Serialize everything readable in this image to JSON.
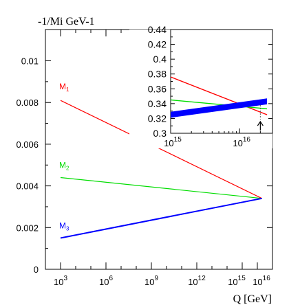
{
  "chart_data": [
    {
      "type": "line",
      "ylabel": "-1/Mi GeV-1",
      "xlabel": "Q [GeV]",
      "xscale": "log10",
      "xlim": [
        100,
        1e+17
      ],
      "ylim": [
        0,
        0.0115
      ],
      "x_tick_labels": [
        {
          "base": "10",
          "exp": "3",
          "value": 1000
        },
        {
          "base": "10",
          "exp": "6",
          "value": 1000000
        },
        {
          "base": "10",
          "exp": "9",
          "value": 1000000000
        },
        {
          "base": "10",
          "exp": "12",
          "value": 1000000000000
        },
        {
          "base": "10",
          "exp": "15",
          "value": 1000000000000000.0
        },
        {
          "base": "10",
          "exp": "16",
          "value": 1e+16
        }
      ],
      "y_ticks": [
        0,
        0.002,
        0.004,
        0.006,
        0.008,
        0.01
      ],
      "y_tick_labels": [
        "0",
        "0.002",
        "0.004",
        "0.006",
        "0.008",
        "0.01"
      ],
      "series": [
        {
          "name": "M1",
          "label_base": "M",
          "label_sub": "1",
          "color": "#ff0000",
          "x": [
            1000,
            2e+16
          ],
          "y": [
            0.0081,
            0.0034
          ]
        },
        {
          "name": "M2",
          "label_base": "M",
          "label_sub": "2",
          "color": "#00dd00",
          "x": [
            1000,
            2e+16
          ],
          "y": [
            0.0044,
            0.0034
          ]
        },
        {
          "name": "M3",
          "label_base": "M",
          "label_sub": "3",
          "color": "#0000ff",
          "x": [
            1000,
            2e+16
          ],
          "y": [
            0.0015,
            0.0034
          ]
        }
      ],
      "grid": false
    },
    {
      "type": "line",
      "inset": true,
      "xscale": "log10",
      "xlim": [
        1000000000000000.0,
        3e+16
      ],
      "ylim": [
        0.3,
        0.44
      ],
      "x_tick_labels": [
        {
          "base": "10",
          "exp": "15",
          "value": 1000000000000000.0
        },
        {
          "base": "10",
          "exp": "16",
          "value": 1e+16
        }
      ],
      "y_ticks": [
        0.3,
        0.32,
        0.34,
        0.36,
        0.38,
        0.4,
        0.42,
        0.44
      ],
      "y_tick_labels": [
        "0.3",
        "0.32",
        "0.34",
        "0.36",
        "0.38",
        "0.4",
        "0.42",
        "0.44"
      ],
      "series": [
        {
          "name": "M1",
          "color": "#ff0000",
          "x": [
            1000000000000000.0,
            2.5e+16
          ],
          "y": [
            0.376,
            0.325
          ]
        },
        {
          "name": "M2",
          "color": "#00dd00",
          "x": [
            1000000000000000.0,
            2.5e+16
          ],
          "y": [
            0.345,
            0.333
          ]
        },
        {
          "name": "M3",
          "color": "#0000ff",
          "x": [
            1000000000000000.0,
            2.5e+16
          ],
          "y": [
            0.325,
            0.343
          ],
          "band_width": 0.008
        }
      ],
      "marker": {
        "x": 2e+16,
        "symbol": "arrow-up",
        "line": "dashed"
      }
    }
  ]
}
